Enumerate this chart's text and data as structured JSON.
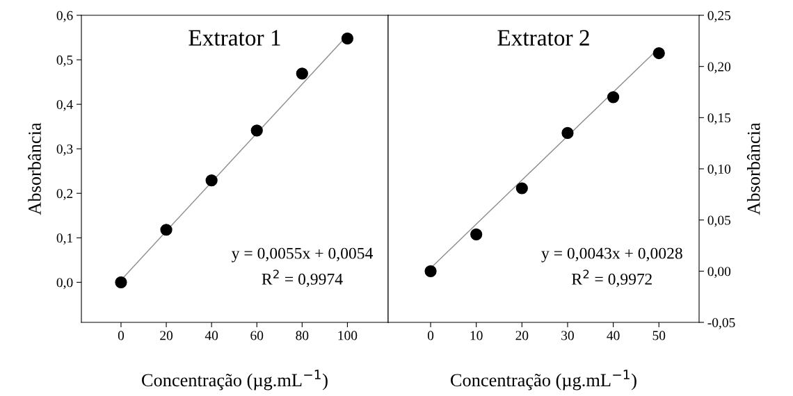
{
  "chart_data": [
    {
      "type": "scatter",
      "title": "Extrator 1",
      "xlabel": "Concentração (µg.mL$^{−1}$)",
      "ylabel": "Absorbância",
      "grid": false,
      "legend": false,
      "x": [
        0,
        20,
        40,
        60,
        80,
        100
      ],
      "series": [
        {
          "marker": "circle",
          "color": "#000000",
          "values": [
            0.0,
            0.118,
            0.229,
            0.341,
            0.469,
            0.548
          ]
        },
        {
          "type": "line",
          "marker": "none",
          "color": "#8c8c8c",
          "x": [
            0,
            100
          ],
          "values": [
            0.005,
            0.555
          ]
        }
      ],
      "xlim": [
        -17.5,
        118
      ],
      "xticks": [
        0,
        20,
        40,
        60,
        80,
        100
      ],
      "ylim": [
        -0.09,
        0.6
      ],
      "yticks": [
        {
          "value": 0,
          "label": "0,0"
        },
        {
          "value": 0.1,
          "label": "0,1"
        },
        {
          "value": 0.2,
          "label": "0,2"
        },
        {
          "value": 0.3,
          "label": "0,3"
        },
        {
          "value": 0.4,
          "label": "0,4"
        },
        {
          "value": 0.5,
          "label": "0,5"
        },
        {
          "value": 0.6,
          "label": "0,6"
        }
      ],
      "annotations": [
        "y = 0,0055x + 0,0054",
        "R$^{2}$ = 0,9974"
      ]
    },
    {
      "type": "scatter",
      "title": "Extrator 2",
      "xlabel": "Concentração (µg.mL$^{−1}$)",
      "y2label": "Absorbância",
      "grid": false,
      "legend": false,
      "x": [
        0,
        10,
        20,
        30,
        40,
        50
      ],
      "series": [
        {
          "axis": "y2",
          "marker": "circle",
          "color": "#000000",
          "values": [
            0.0,
            0.036,
            0.081,
            0.135,
            0.17,
            0.213
          ]
        },
        {
          "type": "line",
          "axis": "y2",
          "marker": "none",
          "color": "#8c8c8c",
          "x": [
            0,
            50
          ],
          "values": [
            0.003,
            0.218
          ]
        }
      ],
      "xlim": [
        -9.3,
        58.8
      ],
      "xticks": [
        0,
        10,
        20,
        30,
        40,
        50
      ],
      "y2lim": [
        -0.05,
        0.25
      ],
      "y2ticks": [
        {
          "value": -0.05,
          "label": "-0,05"
        },
        {
          "value": 0,
          "label": "0,00"
        },
        {
          "value": 0.05,
          "label": "0,05"
        },
        {
          "value": 0.1,
          "label": "0,10"
        },
        {
          "value": 0.15,
          "label": "0,15"
        },
        {
          "value": 0.2,
          "label": "0,20"
        },
        {
          "value": 0.25,
          "label": "0,25"
        }
      ],
      "annotations": [
        "y = 0,0043x + 0,0028",
        "R$^{2}$ = 0,9972"
      ]
    }
  ]
}
